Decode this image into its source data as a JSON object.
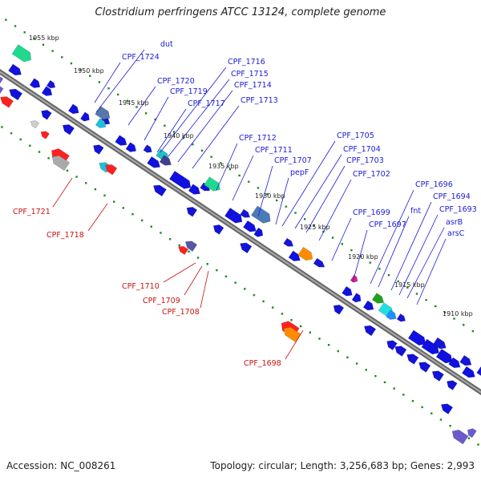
{
  "title": "Clostridium perfringens ATCC 13124, complete genome",
  "footer": {
    "accession": "Accession: NC_008261",
    "summary": "Topology: circular; Length: 3,256,683 bp; Genes: 2,993"
  },
  "colors": {
    "forward_label": "#1a1ad9",
    "reverse_label": "#cc1111",
    "backbone": "#888888",
    "tick_dots": "#1a8a1a"
  },
  "kbp_marks": [
    "1955 kbp",
    "1950 kbp",
    "1945 kbp",
    "1940 kbp",
    "1935 kbp",
    "1930 kbp",
    "1925 kbp",
    "1920 kbp",
    "1915 kbp",
    "1910 kbp"
  ],
  "forward_labels": [
    "dut",
    "CPF_1724",
    "CPF_1720",
    "CPF_1719",
    "CPF_1717",
    "CPF_1716",
    "CPF_1715",
    "CPF_1714",
    "CPF_1713",
    "CPF_1712",
    "CPF_1711",
    "CPF_1707",
    "pepF",
    "CPF_1705",
    "CPF_1704",
    "CPF_1703",
    "CPF_1702",
    "CPF_1699",
    "CPF_1697",
    "fnt",
    "CPF_1696",
    "CPF_1694",
    "CPF_1693",
    "asrB",
    "arsC"
  ],
  "reverse_labels": [
    "CPF_1721",
    "CPF_1718",
    "CPF_1710",
    "CPF_1709",
    "CPF_1708",
    "CPF_1698"
  ]
}
